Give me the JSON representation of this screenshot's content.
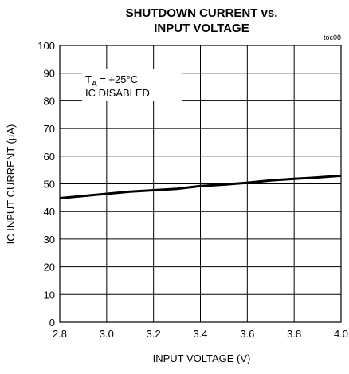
{
  "chart_data": {
    "type": "line",
    "title_line1": "SHUTDOWN CURRENT vs.",
    "title_line2": "INPUT VOLTAGE",
    "figure_ref": "toc08",
    "xlabel": "INPUT VOLTAGE (V)",
    "ylabel": "IC INPUT CURRENT (µA)",
    "xlim": [
      2.8,
      4.0
    ],
    "ylim": [
      0,
      100
    ],
    "x_ticks": [
      "2.8",
      "3.0",
      "3.2",
      "3.4",
      "3.6",
      "3.8",
      "4.0"
    ],
    "y_ticks": [
      "0",
      "10",
      "20",
      "30",
      "40",
      "50",
      "60",
      "70",
      "80",
      "90",
      "100"
    ],
    "grid": true,
    "annotation": {
      "t_symbol": "T",
      "t_subscript": "A",
      "t_value": " = +25°C",
      "line2": "IC DISABLED"
    },
    "series": [
      {
        "x": [
          2.8,
          2.9,
          3.0,
          3.1,
          3.2,
          3.3,
          3.4,
          3.5,
          3.6,
          3.7,
          3.8,
          3.9,
          4.0
        ],
        "y": [
          44.8,
          45.6,
          46.4,
          47.2,
          47.7,
          48.2,
          49.2,
          49.7,
          50.4,
          51.2,
          51.8,
          52.3,
          52.9
        ]
      }
    ]
  }
}
